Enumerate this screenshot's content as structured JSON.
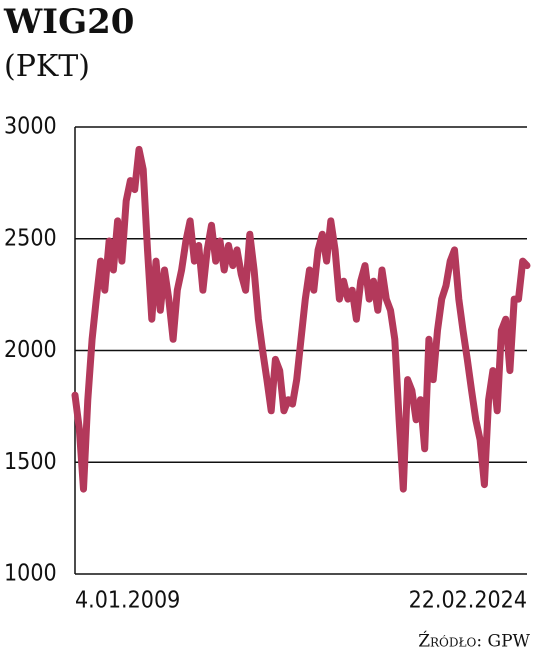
{
  "chart_data": {
    "type": "line",
    "title": "WIG20",
    "subtitle": "(PKT)",
    "source": "Źródło: GPW",
    "categories": [
      "4.01.2009",
      null,
      null,
      null,
      null,
      null,
      null,
      null,
      null,
      null,
      null,
      null,
      null,
      null,
      null,
      null,
      null,
      null,
      null,
      null,
      null,
      null,
      null,
      null,
      null,
      null,
      null,
      null,
      null,
      null,
      null,
      null,
      null,
      null,
      null,
      null,
      null,
      null,
      null,
      null,
      null,
      null,
      null,
      null,
      null,
      null,
      null,
      null,
      null,
      null,
      null,
      null,
      null,
      null,
      null,
      null,
      null,
      null,
      null,
      null,
      null,
      null,
      null,
      null,
      null,
      null,
      null,
      null,
      null,
      null,
      null,
      null,
      null,
      null,
      null,
      null,
      null,
      null,
      null,
      null,
      null,
      null,
      null,
      null,
      null,
      null,
      null,
      null,
      null,
      null,
      null,
      null,
      null,
      null,
      null,
      null,
      null,
      null,
      null,
      null,
      null,
      null,
      null,
      null,
      null,
      null,
      "22.02.2024"
    ],
    "values": [
      1800,
      1650,
      1380,
      1780,
      2050,
      2230,
      2400,
      2270,
      2490,
      2360,
      2580,
      2400,
      2670,
      2760,
      2720,
      2900,
      2810,
      2450,
      2140,
      2400,
      2180,
      2360,
      2230,
      2050,
      2270,
      2360,
      2490,
      2580,
      2400,
      2470,
      2270,
      2450,
      2560,
      2400,
      2490,
      2360,
      2470,
      2380,
      2450,
      2340,
      2270,
      2520,
      2360,
      2140,
      2000,
      1870,
      1730,
      1960,
      1910,
      1730,
      1780,
      1760,
      1870,
      2050,
      2230,
      2360,
      2270,
      2450,
      2520,
      2400,
      2580,
      2450,
      2230,
      2310,
      2230,
      2270,
      2140,
      2310,
      2380,
      2230,
      2310,
      2180,
      2360,
      2230,
      2180,
      2050,
      1690,
      1380,
      1870,
      1820,
      1690,
      1780,
      1560,
      2050,
      1870,
      2090,
      2230,
      2290,
      2400,
      2450,
      2230,
      2090,
      1960,
      1820,
      1690,
      1600,
      1400,
      1780,
      1910,
      1730,
      2090,
      2140,
      1910,
      2230,
      2230,
      2400,
      2380
    ],
    "color": "#b3395b",
    "ylim": [
      1000,
      3000
    ],
    "yticks": [
      1000,
      1500,
      2000,
      2500,
      3000
    ],
    "grid": true
  }
}
